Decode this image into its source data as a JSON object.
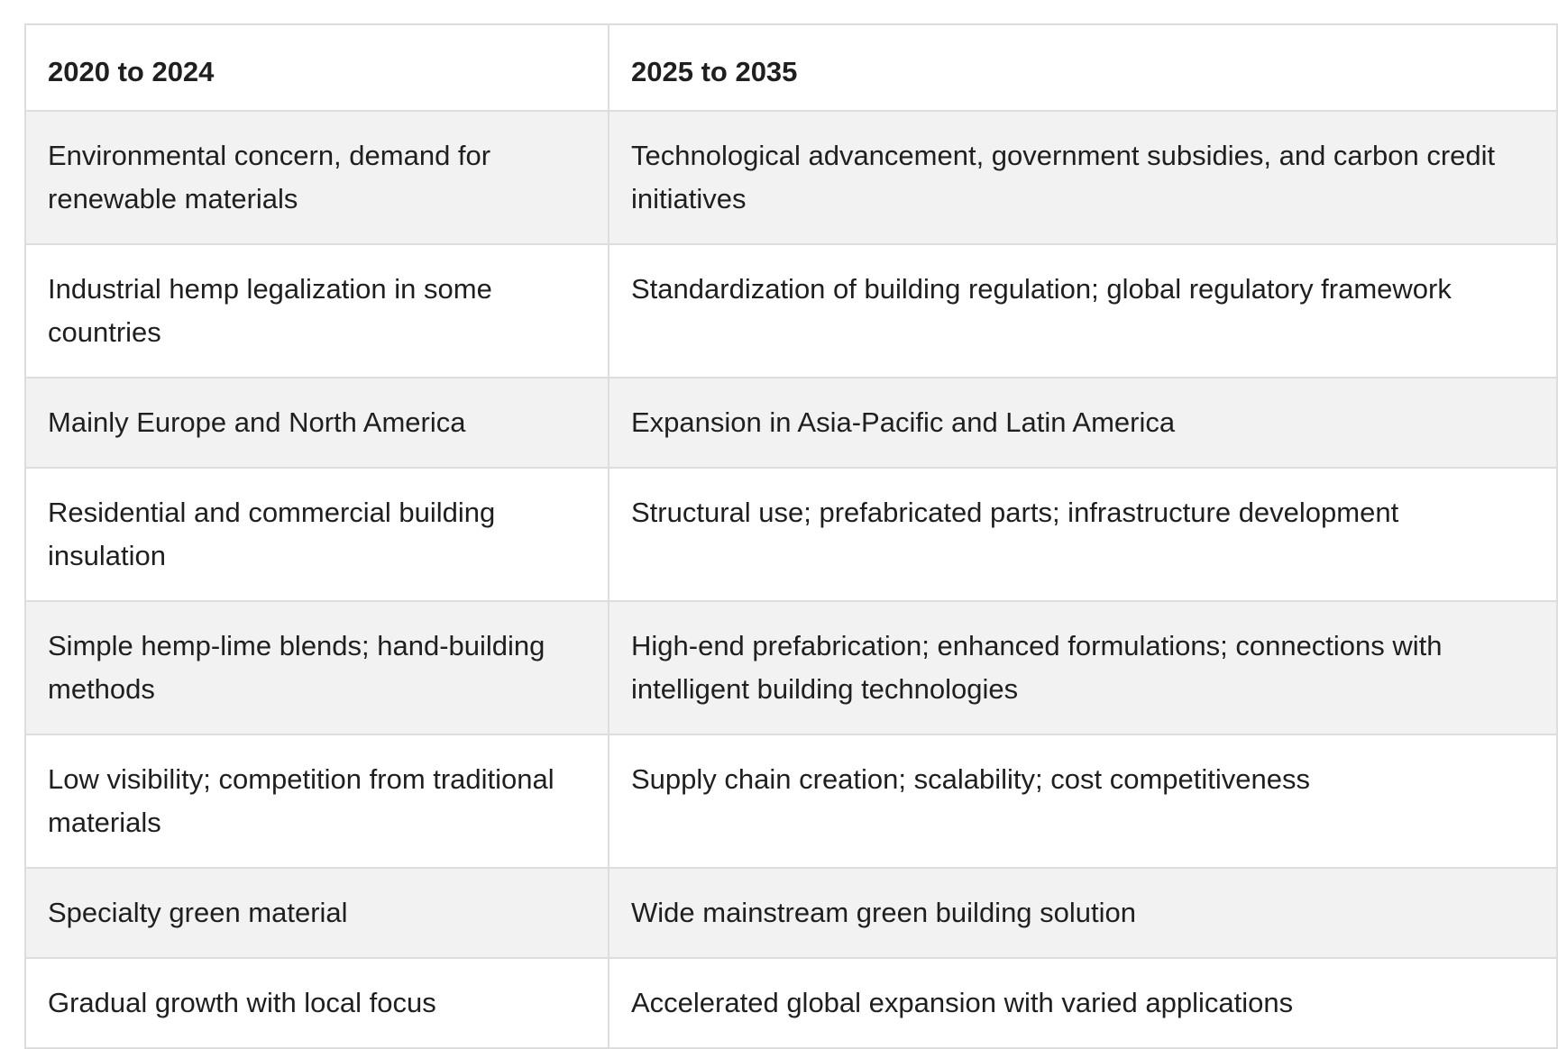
{
  "table": {
    "headers": [
      "2020 to 2024",
      "2025 to 2035"
    ],
    "rows": [
      [
        "Environmental concern, demand for renewable materials",
        "Technological advancement, government subsidies, and carbon credit initiatives"
      ],
      [
        "Industrial hemp legalization in some countries",
        "Standardization of building regulation; global regulatory framework"
      ],
      [
        "Mainly Europe and North America",
        "Expansion in Asia-Pacific and Latin America"
      ],
      [
        "Residential and commercial building insulation",
        "Structural use; prefabricated parts; infrastructure development"
      ],
      [
        "Simple hemp-lime blends; hand-building methods",
        "High-end prefabrication; enhanced formulations; connections with intelligent building technologies"
      ],
      [
        "Low visibility; competition from traditional materials",
        "Supply chain creation; scalability; cost competitiveness"
      ],
      [
        "Specialty green material",
        "Wide mainstream green building solution"
      ],
      [
        "Gradual growth with local focus",
        "Accelerated global expansion with varied applications"
      ]
    ]
  }
}
